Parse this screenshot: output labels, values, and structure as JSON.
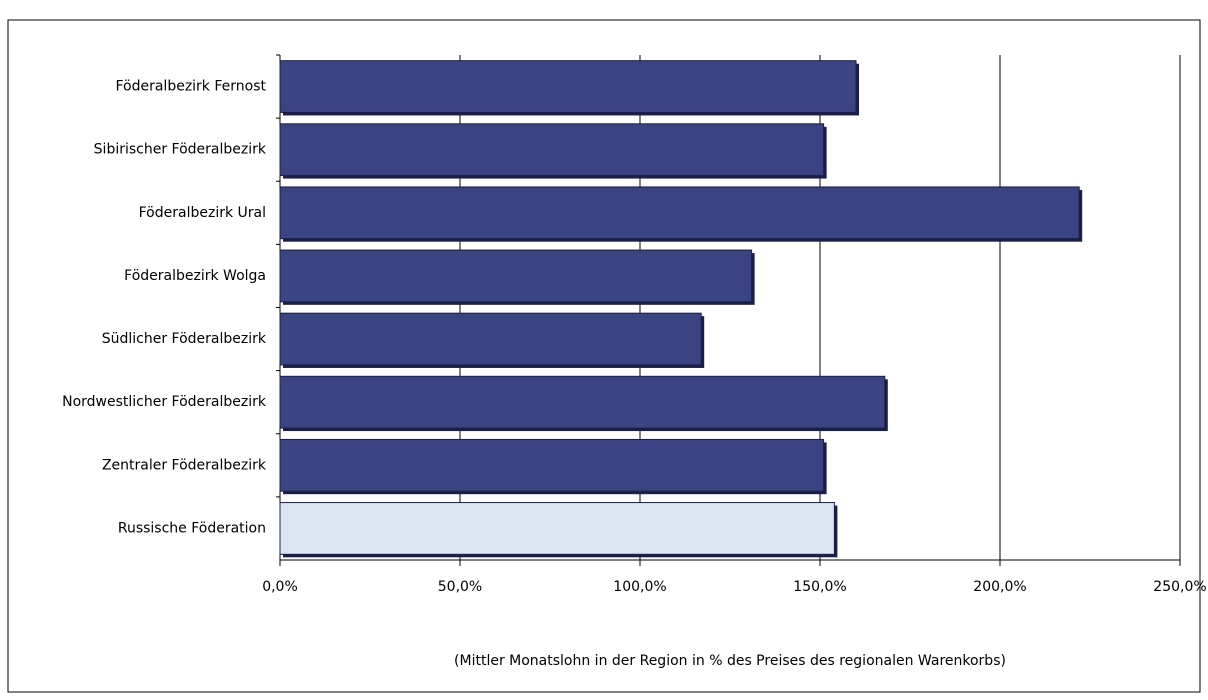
{
  "chart_data": {
    "type": "bar",
    "orientation": "horizontal",
    "x_label": "(Mittler Monatslohn in der Region in % des Preises des regionalen Warenkorbs)",
    "categories": [
      "Föderalbezirk Fernost",
      "Sibirischer Föderalbezirk",
      "Föderalbezirk Ural",
      "Föderalbezirk Wolga",
      "Südlicher  Föderalbezirk",
      "Nordwestlicher Föderalbezirk",
      "Zentraler Föderalbezirk",
      "Russische Föderation"
    ],
    "values": [
      160,
      151,
      222,
      131,
      117,
      168,
      151,
      154
    ],
    "colors": [
      "#3b4482",
      "#3b4482",
      "#3b4482",
      "#3b4482",
      "#3b4482",
      "#3b4482",
      "#3b4482",
      "#dbe5f1"
    ],
    "xlim": [
      0,
      250
    ],
    "xticks": [
      {
        "value": 0,
        "label": "0,0%"
      },
      {
        "value": 50,
        "label": "50,0%"
      },
      {
        "value": 100,
        "label": "100,0%"
      },
      {
        "value": 150,
        "label": "150,0%"
      },
      {
        "value": 200,
        "label": "200,0%"
      },
      {
        "value": 250,
        "label": "250,0%"
      }
    ],
    "grid": true
  }
}
